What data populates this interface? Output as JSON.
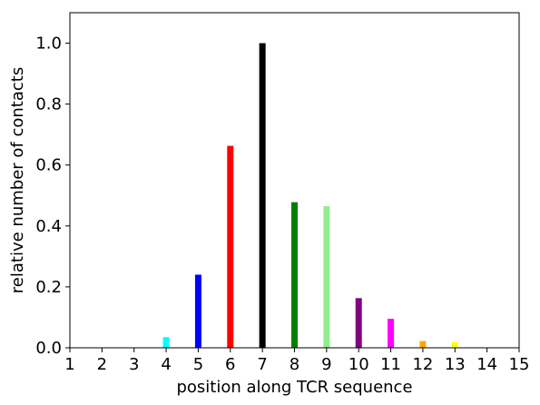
{
  "chart_data": {
    "type": "bar",
    "title": "",
    "xlabel": "position along TCR sequence",
    "ylabel": "relative number of contacts",
    "xlim": [
      1,
      15
    ],
    "ylim": [
      0,
      1.1
    ],
    "x_ticks": [
      1,
      2,
      3,
      4,
      5,
      6,
      7,
      8,
      9,
      10,
      11,
      12,
      13,
      14,
      15
    ],
    "y_ticks": [
      0.0,
      0.2,
      0.4,
      0.6,
      0.8,
      1.0
    ],
    "y_tick_labels": [
      "0.0",
      "0.2",
      "0.4",
      "0.6",
      "0.8",
      "1.0"
    ],
    "bars": [
      {
        "x": 4,
        "value": 0.035,
        "color": "#00ffff"
      },
      {
        "x": 5,
        "value": 0.24,
        "color": "#0000ff"
      },
      {
        "x": 6,
        "value": 0.663,
        "color": "#ff0000"
      },
      {
        "x": 7,
        "value": 1.0,
        "color": "#000000"
      },
      {
        "x": 8,
        "value": 0.478,
        "color": "#008000"
      },
      {
        "x": 9,
        "value": 0.465,
        "color": "#90ee90"
      },
      {
        "x": 10,
        "value": 0.163,
        "color": "#800080"
      },
      {
        "x": 11,
        "value": 0.095,
        "color": "#ff00ff"
      },
      {
        "x": 12,
        "value": 0.022,
        "color": "#ffa500"
      },
      {
        "x": 13,
        "value": 0.018,
        "color": "#ffff00"
      }
    ],
    "grid": false,
    "legend": "none"
  }
}
